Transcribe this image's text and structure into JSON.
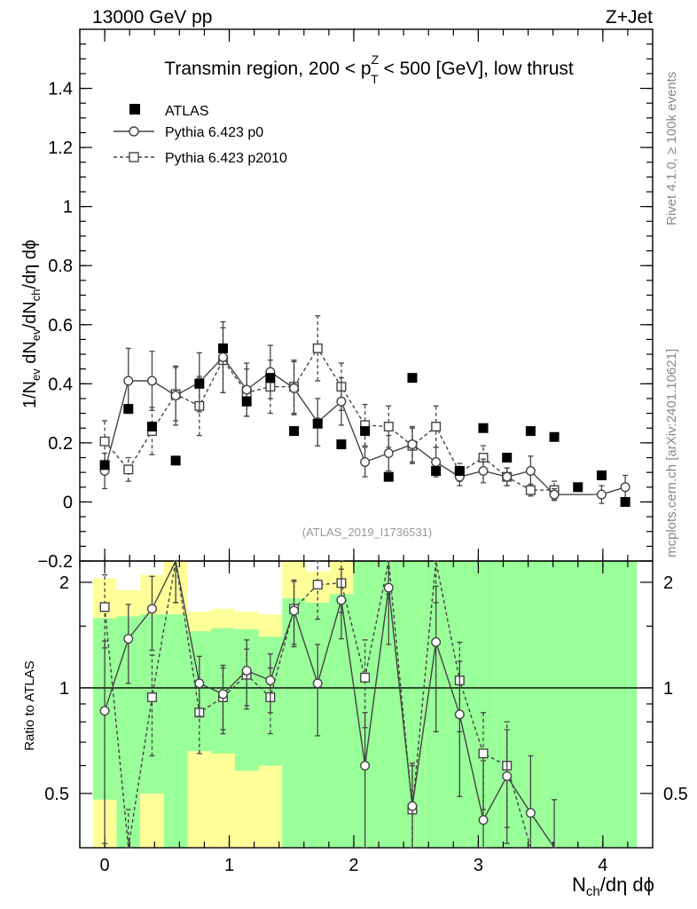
{
  "header": {
    "left": "13000 GeV pp",
    "right": "Z+Jet"
  },
  "side_labels": {
    "rivet": "Rivet 4.1.0, ≥ 100k events",
    "mcplots": "mcplots.cern.ch [arXiv:2401.10621]"
  },
  "chart_data": {
    "type": "scatter",
    "title": "Transmin region, 200 < pTZ < 500 [GeV], low thrust",
    "title_parts": {
      "pre": "Transmin region, 200 < p",
      "sup": "Z",
      "sub": "T",
      "post": " < 500 [GeV], low thrust"
    },
    "analysis_id": "(ATLAS_2019_I1736531)",
    "xlabel": "Nch/dη dϕ",
    "ylabel": "1/Nev dNev/dNch/dη dϕ",
    "xlim": [
      -0.2,
      4.4
    ],
    "ylim": [
      -0.2,
      1.6
    ],
    "x_ticks": [
      "0",
      "1",
      "2",
      "3",
      "4"
    ],
    "y_ticks": [
      "−0.2",
      "0",
      "0.2",
      "0.4",
      "0.6",
      "0.8",
      "1",
      "1.2",
      "1.4"
    ],
    "legend": {
      "position": "top-left",
      "entries": [
        "ATLAS",
        "Pythia 6.423 p0",
        "Pythia 6.423 p2010"
      ]
    },
    "x": [
      0,
      0.19,
      0.38,
      0.57,
      0.76,
      0.95,
      1.14,
      1.33,
      1.52,
      1.71,
      1.9,
      2.09,
      2.28,
      2.47,
      2.66,
      2.85,
      3.04,
      3.23,
      3.42,
      3.61,
      3.8,
      3.99,
      4.18
    ],
    "atlas": [
      0.125,
      0.315,
      0.255,
      0.14,
      0.4,
      0.52,
      0.34,
      0.42,
      0.24,
      0.265,
      0.195,
      0.24,
      0.085,
      0.42,
      0.105,
      0.105,
      0.25,
      0.15,
      0.24,
      0.22,
      0.05,
      0.09,
      0.0
    ],
    "series": [
      {
        "name": "Pythia 6.423 p0",
        "x": [
          0,
          0.19,
          0.38,
          0.57,
          0.76,
          0.95,
          1.14,
          1.33,
          1.52,
          1.71,
          1.9,
          2.09,
          2.28,
          2.47,
          2.66,
          2.85,
          3.04,
          3.23,
          3.42,
          3.61,
          3.99,
          4.18
        ],
        "values": [
          0.105,
          0.41,
          0.41,
          0.36,
          0.405,
          0.49,
          0.38,
          0.44,
          0.385,
          0.27,
          0.34,
          0.135,
          0.165,
          0.195,
          0.135,
          0.085,
          0.105,
          0.085,
          0.105,
          0.025,
          0.025,
          0.05
        ],
        "errors": [
          0.06,
          0.11,
          0.1,
          0.1,
          0.1,
          0.12,
          0.09,
          0.09,
          0.09,
          0.08,
          0.08,
          0.05,
          0.06,
          0.06,
          0.05,
          0.03,
          0.04,
          0.03,
          0.05,
          0.02,
          0.03,
          0.04
        ]
      },
      {
        "name": "Pythia 6.423 p2010",
        "x": [
          0,
          0.19,
          0.38,
          0.57,
          0.76,
          0.95,
          1.14,
          1.33,
          1.52,
          1.71,
          1.9,
          2.09,
          2.28,
          2.47,
          2.66,
          2.85,
          3.04,
          3.23,
          3.42,
          3.61
        ],
        "values": [
          0.205,
          0.11,
          0.24,
          0.365,
          0.325,
          0.48,
          0.37,
          0.39,
          0.39,
          0.52,
          0.39,
          0.26,
          0.255,
          0.19,
          0.255,
          0.1,
          0.15,
          0.085,
          0.04,
          0.04
        ],
        "errors": [
          0.07,
          0.04,
          0.08,
          0.09,
          0.1,
          0.11,
          0.08,
          0.09,
          0.09,
          0.11,
          0.08,
          0.07,
          0.07,
          0.06,
          0.07,
          0.03,
          0.04,
          0.03,
          0.02,
          0.03
        ]
      }
    ],
    "ratio": {
      "ylabel": "Ratio to ATLAS",
      "ylim": [
        0.35,
        2.3
      ],
      "y_ticks": [
        "0.5",
        "1",
        "2"
      ],
      "reference": 1,
      "band_x": [
        0,
        0.19,
        0.38,
        0.57,
        0.76,
        0.95,
        1.14,
        1.33,
        1.52,
        1.71,
        1.9,
        2.09,
        2.28,
        2.47,
        2.66,
        2.85,
        3.04,
        3.23,
        3.42,
        3.61,
        3.8,
        3.99,
        4.18
      ],
      "band_green": [
        [
          0.48,
          1.58
        ],
        [
          0.35,
          1.6
        ],
        [
          0.5,
          1.62
        ],
        [
          0.35,
          1.62
        ],
        [
          0.66,
          1.45
        ],
        [
          0.65,
          1.48
        ],
        [
          0.58,
          1.47
        ],
        [
          0.6,
          1.4
        ],
        [
          0.35,
          1.8
        ],
        [
          0.35,
          1.75
        ],
        [
          0.35,
          1.85
        ],
        [
          0.35,
          2.3
        ],
        [
          0.35,
          2.3
        ],
        [
          0.35,
          2.3
        ],
        [
          0.35,
          2.3
        ],
        [
          0.35,
          2.3
        ],
        [
          0.35,
          2.3
        ],
        [
          0.35,
          2.3
        ],
        [
          0.35,
          2.3
        ],
        [
          0.35,
          2.3
        ],
        [
          0.35,
          2.3
        ],
        [
          0.35,
          2.3
        ],
        [
          0.35,
          2.3
        ]
      ],
      "band_yellow": [
        [
          0.35,
          2.05
        ],
        [
          0.35,
          1.9
        ],
        [
          0.35,
          2.1
        ],
        [
          0.35,
          2.3
        ],
        [
          0.35,
          1.65
        ],
        [
          0.35,
          1.68
        ],
        [
          0.35,
          1.65
        ],
        [
          0.35,
          1.62
        ],
        [
          0.35,
          2.3
        ],
        [
          0.35,
          2.15
        ],
        [
          0.35,
          2.3
        ],
        [
          0.35,
          2.3
        ],
        [
          0.35,
          2.3
        ],
        [
          0.35,
          2.3
        ],
        [
          0.35,
          2.3
        ],
        [
          0.35,
          2.3
        ],
        [
          0.35,
          2.3
        ],
        [
          0.35,
          2.3
        ],
        [
          0.35,
          2.3
        ],
        [
          0.35,
          2.3
        ],
        [
          0.35,
          2.3
        ],
        [
          0.35,
          2.3
        ],
        [
          0.35,
          2.3
        ]
      ],
      "series": [
        {
          "name": "Pythia 6.423 p0",
          "x": [
            0,
            0.19,
            0.38,
            0.57,
            0.76,
            0.95,
            1.14,
            1.33,
            1.52,
            1.71,
            1.9,
            2.09,
            2.28,
            2.47,
            2.66,
            2.85,
            3.04,
            3.23,
            3.42,
            3.61
          ],
          "values": [
            0.86,
            1.38,
            1.68,
            2.45,
            1.03,
            0.96,
            1.12,
            1.05,
            1.66,
            1.03,
            1.78,
            0.6,
            1.93,
            0.46,
            1.35,
            0.84,
            0.42,
            0.56,
            0.44,
            0.28
          ],
          "errors": [
            0.5,
            0.35,
            0.4,
            0.7,
            0.2,
            0.2,
            0.25,
            0.2,
            0.35,
            0.3,
            0.4,
            0.25,
            0.6,
            0.15,
            0.6,
            0.35,
            0.2,
            0.2,
            0.2,
            0.2
          ]
        },
        {
          "name": "Pythia 6.423 p2010",
          "x": [
            0,
            0.19,
            0.38,
            0.57,
            0.76,
            0.95,
            1.14,
            1.33,
            1.52,
            1.71,
            1.9,
            2.09,
            2.28,
            2.47,
            2.66,
            2.85,
            3.04,
            3.23,
            3.42
          ],
          "values": [
            1.7,
            0.3,
            0.94,
            2.45,
            0.85,
            0.94,
            1.09,
            0.94,
            1.68,
            1.97,
            1.99,
            1.07,
            2.45,
            0.45,
            2.45,
            1.05,
            0.65,
            0.6,
            0.2
          ],
          "errors": [
            0.4,
            0.15,
            0.3,
            0.7,
            0.2,
            0.2,
            0.2,
            0.2,
            0.35,
            0.4,
            0.35,
            0.3,
            0.6,
            0.15,
            0.7,
            0.3,
            0.2,
            0.2,
            0.15
          ]
        }
      ]
    }
  }
}
